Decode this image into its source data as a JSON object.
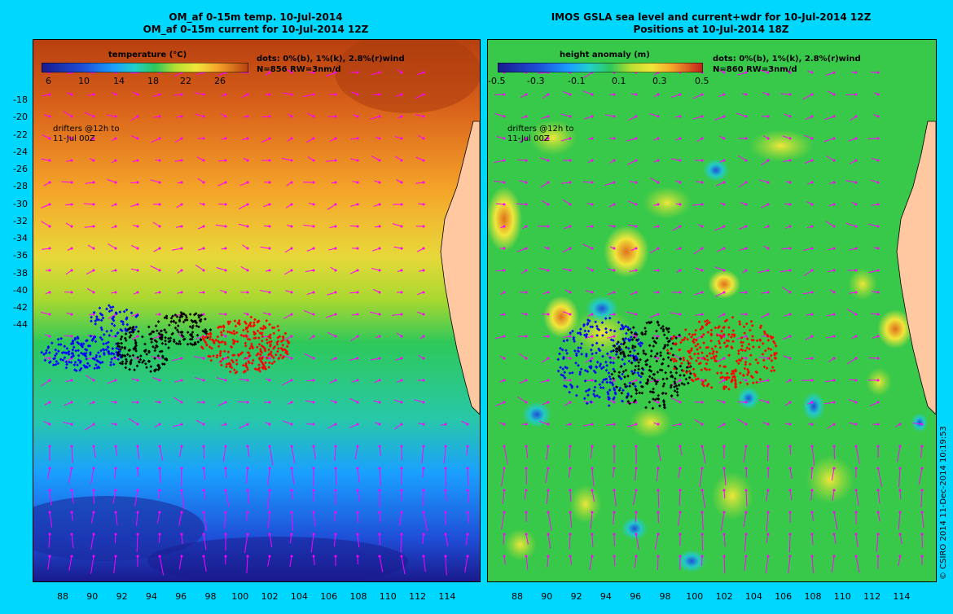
{
  "left_panel": {
    "title_line1": "OM_af 0-15m temp. 10-Jul-2014",
    "title_line2": "OM_af 0-15m current for 10-Jul-2014 12Z",
    "colorbar_label": "temperature (°C)",
    "colorbar_ticks": [
      "6",
      "10",
      "14",
      "18",
      "22",
      "26"
    ],
    "colorbar_colors": [
      "#1a1a8c",
      "#1f4fd8",
      "#1aa0ff",
      "#22d0c8",
      "#2ec85a",
      "#8ad22a",
      "#f0e63a",
      "#f5a52a",
      "#e0701e",
      "#b8400f"
    ],
    "dots_note": "dots: 0%(b), 1%(k), 2.8%(r)wind",
    "n_note": "N=856 RW=3nm/d",
    "drifters_note_1": "drifters @12h to",
    "drifters_note_2": "11-Jul 00Z"
  },
  "right_panel": {
    "title_line1": "IMOS GSLA sea level and current+wdr for 10-Jul-2014 12Z",
    "title_line2": "Positions at 10-Jul-2014 18Z",
    "colorbar_label": "height anomaly (m)",
    "colorbar_ticks": [
      "-0.5",
      "-0.3",
      "-0.1",
      "0.1",
      "0.3",
      "0.5"
    ],
    "colorbar_colors": [
      "#1a1a8c",
      "#1f4fd8",
      "#1aa0ff",
      "#22d0c8",
      "#2ec85a",
      "#8ad22a",
      "#f0e63a",
      "#f5a52a",
      "#e0701e",
      "#c0201a"
    ],
    "dots_note": "dots: 0%(b), 1%(k), 2.8%(r)wind",
    "n_note": "N=860 RW=3nm/d",
    "drifters_note_1": "drifters @12h to",
    "drifters_note_2": "11-Jul 00Z"
  },
  "y_axis_labels": [
    "-18",
    "-20",
    "-22",
    "-24",
    "-26",
    "-28",
    "-30",
    "-32",
    "-34",
    "-36",
    "-38",
    "-40",
    "-42",
    "-44"
  ],
  "x_axis_labels": [
    "88",
    "90",
    "92",
    "94",
    "96",
    "98",
    "100",
    "102",
    "104",
    "106",
    "108",
    "110",
    "112",
    "114"
  ],
  "copyright": "© CSIRO 2014   11-Dec-2014 10:19:53",
  "colors": {
    "background": "#00d7ff",
    "land": "#ffc8a0",
    "vector": "#ff00ff",
    "drifter_blue": "#0000ff",
    "drifter_black": "#000000",
    "drifter_red": "#ff0000"
  }
}
